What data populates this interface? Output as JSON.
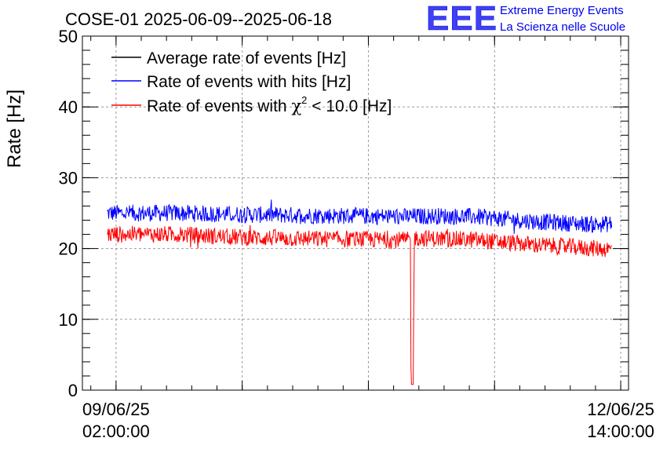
{
  "chart_data": {
    "type": "line",
    "title": "COSE-01 2025-06-09--2025-06-18",
    "xlabel": "",
    "ylabel": "Rate [Hz]",
    "ylim": [
      0,
      50
    ],
    "y_ticks": [
      "0",
      "10",
      "20",
      "30",
      "40",
      "50"
    ],
    "x_tick_labels": [
      {
        "date": "09/06/25",
        "time": "02:00:00"
      },
      {
        "date": "12/06/25",
        "time": "14:00:00"
      }
    ],
    "x_range_hours": [
      -5.6,
      85.3
    ],
    "grid": true,
    "legend_position": "top-left",
    "series": [
      {
        "name": "Average rate of events [Hz]",
        "legend_label": "Average rate of events [Hz]",
        "color": "#000000",
        "x_hours": [],
        "values": []
      },
      {
        "name": "Rate of events with hits [Hz]",
        "legend_label": "Rate of events with hits [Hz]",
        "color": "#0000ff",
        "x_hours": [
          -1.5,
          10,
          20,
          30,
          40,
          48,
          53,
          60,
          70,
          80,
          82.5
        ],
        "values": [
          25.0,
          25.0,
          24.8,
          24.7,
          24.6,
          24.5,
          24.6,
          24.5,
          23.8,
          23.4,
          23.5
        ]
      },
      {
        "name": "Rate of events with chi2 < 10.0 [Hz]",
        "legend_label_prefix": "Rate of events with ",
        "legend_symbol": "χ",
        "legend_superscript": "2",
        "legend_label_suffix": " < 10.0 [Hz]",
        "color": "#ff0000",
        "x_hours": [
          -1.5,
          10,
          20,
          30,
          40,
          48,
          49.0,
          49.1,
          49.5,
          49.6,
          53,
          60,
          70,
          80,
          82.5
        ],
        "values": [
          22.0,
          22.0,
          21.6,
          21.4,
          21.3,
          21.2,
          21.2,
          0.8,
          0.8,
          21.5,
          21.4,
          21.2,
          20.5,
          20.0,
          19.9
        ]
      }
    ]
  },
  "logo": {
    "text": "EEE",
    "line1": "Extreme Energy Events",
    "line2": "La Scienza nelle Scuole",
    "color": "#0000ee"
  }
}
